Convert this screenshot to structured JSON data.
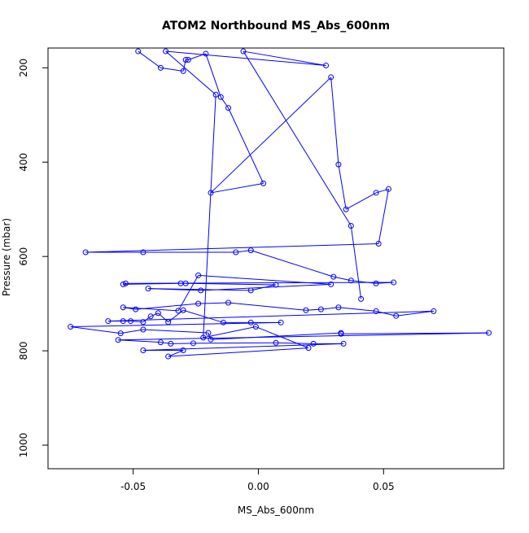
{
  "chart_data": {
    "type": "line",
    "title": "ATOM2 Northbound MS_Abs_600nm",
    "xlabel": "MS_Abs_600nm",
    "ylabel": "Pressure (mbar)",
    "xlim": [
      -0.084,
      0.098
    ],
    "ylim": [
      1050,
      158
    ],
    "y_reversed": true,
    "x_ticks": [
      -0.05,
      0.0,
      0.05
    ],
    "x_tick_labels": [
      "-0.05",
      "0.00",
      "0.05"
    ],
    "y_ticks": [
      200,
      400,
      600,
      800,
      1000
    ],
    "y_tick_labels": [
      "200",
      "400",
      "600",
      "800",
      "1000"
    ],
    "grid": false,
    "series_color": "#0000ff",
    "marker": "open-circle",
    "series": [
      {
        "points": [
          [
            -0.048,
            165
          ],
          [
            -0.039,
            200
          ],
          [
            -0.03,
            207
          ],
          [
            -0.029,
            183
          ],
          [
            -0.028,
            183
          ],
          [
            -0.021,
            170
          ],
          [
            -0.015,
            262
          ],
          [
            -0.012,
            285
          ],
          [
            0.002,
            445
          ],
          [
            -0.019,
            465
          ],
          [
            0.029,
            220
          ],
          [
            0.032,
            405
          ],
          [
            0.035,
            500
          ],
          [
            0.047,
            465
          ],
          [
            0.052,
            457
          ],
          [
            0.048,
            573
          ],
          [
            -0.069,
            591
          ],
          [
            -0.046,
            591
          ],
          [
            -0.009,
            591
          ],
          [
            -0.003,
            587
          ],
          [
            0.03,
            643
          ],
          [
            0.037,
            651
          ],
          [
            0.047,
            657
          ],
          [
            0.054,
            655
          ],
          [
            -0.053,
            657
          ],
          [
            -0.054,
            659
          ],
          [
            -0.031,
            657
          ],
          [
            -0.029,
            657
          ],
          [
            0.007,
            660
          ],
          [
            -0.003,
            672
          ],
          [
            -0.044,
            668
          ],
          [
            -0.023,
            672
          ],
          [
            0.029,
            659
          ],
          [
            -0.024,
            640
          ],
          [
            -0.032,
            715
          ],
          [
            -0.054,
            708
          ],
          [
            -0.049,
            712
          ],
          [
            -0.024,
            700
          ],
          [
            -0.012,
            698
          ],
          [
            0.019,
            714
          ],
          [
            0.025,
            712
          ],
          [
            0.032,
            708
          ],
          [
            0.047,
            716
          ],
          [
            0.055,
            726
          ],
          [
            0.07,
            716
          ],
          [
            -0.06,
            737
          ],
          [
            -0.054,
            737
          ],
          [
            -0.051,
            737
          ],
          [
            -0.046,
            739
          ],
          [
            -0.043,
            727
          ],
          [
            -0.04,
            720
          ],
          [
            -0.036,
            739
          ],
          [
            -0.03,
            714
          ],
          [
            -0.014,
            740
          ],
          [
            -0.003,
            740
          ],
          [
            0.009,
            740
          ],
          [
            -0.075,
            749
          ],
          [
            -0.055,
            763
          ],
          [
            -0.046,
            755
          ],
          [
            -0.02,
            762
          ],
          [
            -0.019,
            776
          ],
          [
            0.033,
            762
          ],
          [
            0.033,
            764
          ],
          [
            0.092,
            762
          ],
          [
            -0.056,
            777
          ],
          [
            -0.039,
            782
          ],
          [
            -0.035,
            785
          ],
          [
            -0.026,
            784
          ],
          [
            0.007,
            783
          ],
          [
            0.022,
            785
          ],
          [
            0.034,
            785
          ],
          [
            -0.046,
            799
          ],
          [
            -0.03,
            799
          ],
          [
            -0.036,
            812
          ],
          [
            0.02,
            794
          ],
          [
            -0.001,
            749
          ],
          [
            -0.022,
            772
          ],
          [
            -0.017,
            257
          ],
          [
            -0.037,
            165
          ],
          [
            0.027,
            195
          ],
          [
            -0.006,
            165
          ],
          [
            0.037,
            535
          ],
          [
            0.041,
            690
          ]
        ]
      }
    ]
  }
}
